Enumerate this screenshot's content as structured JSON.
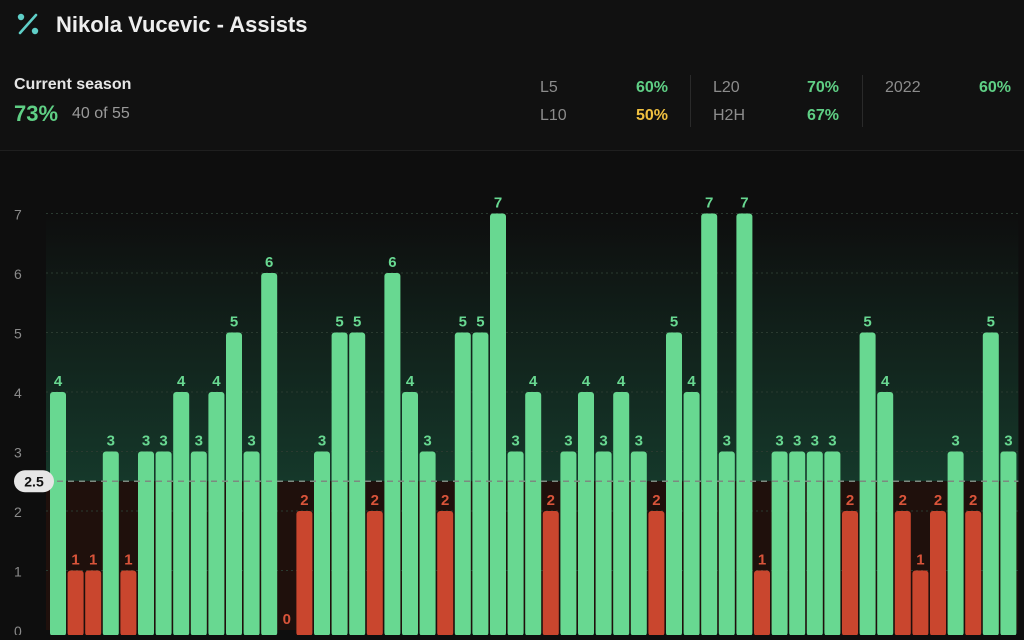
{
  "header": {
    "title": "Nikola Vucevic - Assists",
    "current_season_label": "Current season",
    "current_season_pct": "73%",
    "current_season_count": "40 of 55",
    "stats": [
      {
        "label": "L5",
        "value": "60%",
        "color": "#5fcf85"
      },
      {
        "label": "L10",
        "value": "50%",
        "color": "#f0c040"
      },
      {
        "label": "L20",
        "value": "70%",
        "color": "#5fcf85"
      },
      {
        "label": "H2H",
        "value": "67%",
        "color": "#5fcf85"
      },
      {
        "label": "2022",
        "value": "60%",
        "color": "#5fcf85"
      }
    ]
  },
  "chart_data": {
    "type": "bar",
    "values": [
      4,
      1,
      1,
      3,
      1,
      3,
      3,
      4,
      3,
      4,
      5,
      3,
      6,
      0,
      2,
      3,
      5,
      5,
      2,
      6,
      4,
      3,
      2,
      5,
      5,
      7,
      3,
      4,
      2,
      3,
      4,
      3,
      4,
      3,
      2,
      5,
      4,
      7,
      3,
      7,
      1,
      3,
      3,
      3,
      3,
      2,
      5,
      4,
      2,
      1,
      2,
      3,
      2,
      5,
      3
    ],
    "threshold": 2.5,
    "threshold_label": "2.5",
    "ylim": [
      0,
      7
    ],
    "yticks": [
      "0",
      "1",
      "2",
      "3",
      "4",
      "5",
      "6",
      "7"
    ],
    "colors": {
      "over": "#68d891",
      "under": "#c9462e",
      "over_label": "#68d891",
      "under_label": "#d9543a"
    },
    "grid": true
  }
}
